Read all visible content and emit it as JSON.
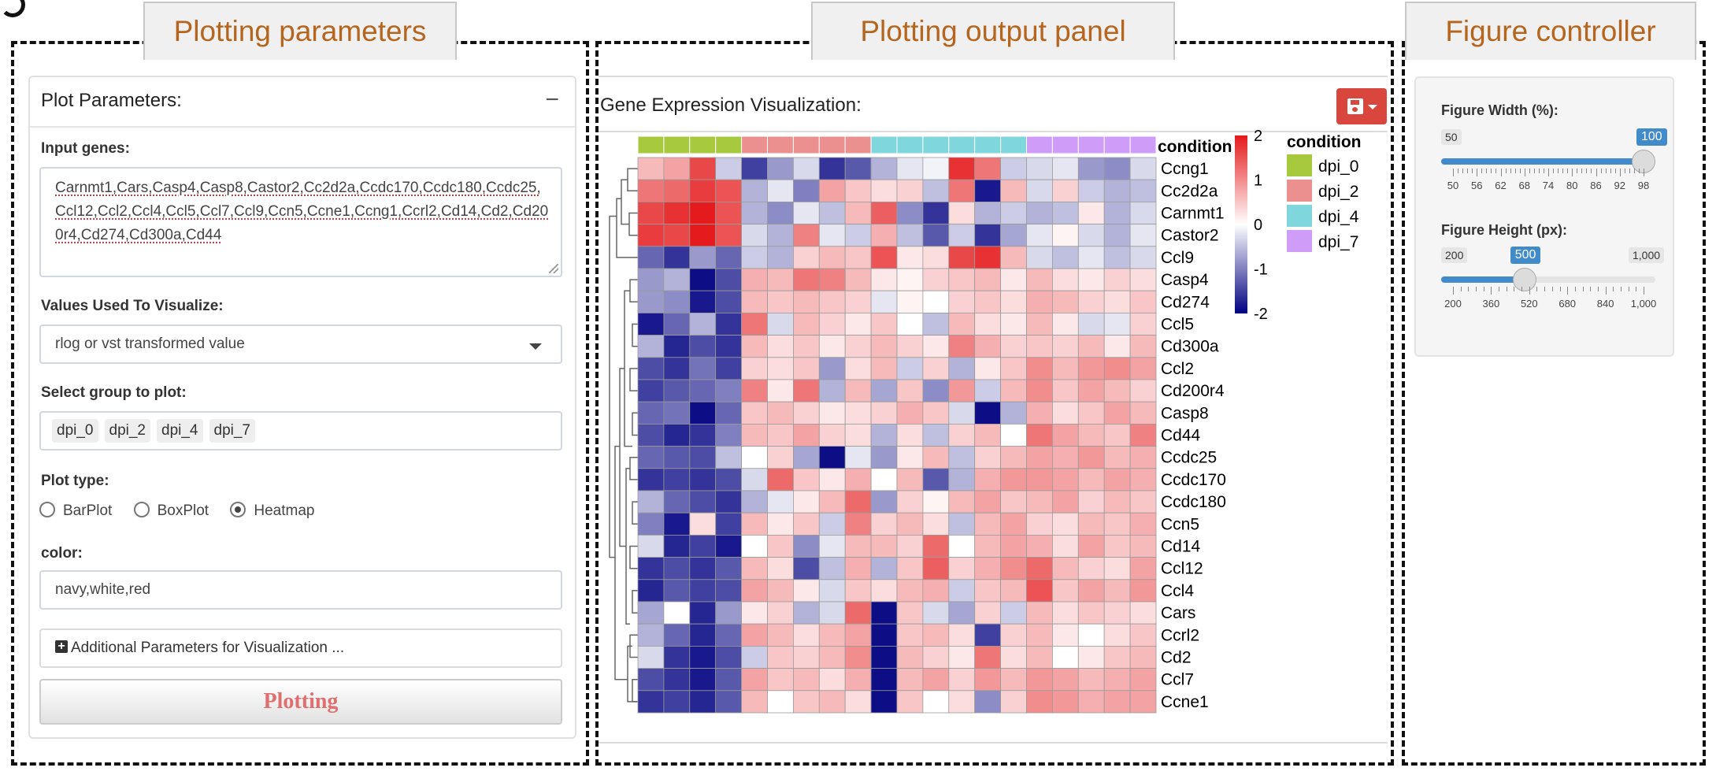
{
  "panel_labels": {
    "left": "Plotting parameters",
    "middle": "Plotting output panel",
    "right": "Figure controller"
  },
  "plot_params": {
    "title": "Plot Parameters:",
    "collapse_symbol": "−",
    "input_genes_label": "Input genes:",
    "input_genes_value": "Carnmt1,Cars,Casp4,Casp8,Castor2,Cc2d2a,Ccdc170,Ccdc180,Ccdc25,Ccl12,Ccl2,Ccl4,Ccl5,Ccl7,Ccl9,Ccn5,Ccne1,Ccng1,Ccrl2,Cd14,Cd2,Cd200r4,Cd274,Cd300a,Cd44",
    "values_label": "Values Used To Visualize:",
    "values_selected": "rlog or vst transformed value",
    "group_label": "Select group to plot:",
    "groups": [
      "dpi_0",
      "dpi_2",
      "dpi_4",
      "dpi_7"
    ],
    "plot_type_label": "Plot type:",
    "plot_types": [
      "BarPlot",
      "BoxPlot",
      "Heatmap"
    ],
    "plot_type_selected": "Heatmap",
    "color_label": "color:",
    "color_value": "navy,white,red",
    "additional_label": "Additional Parameters for Visualization ...",
    "plot_button": "Plotting"
  },
  "output": {
    "title": "Gene Expression Visualization:",
    "save_icon": "save-icon"
  },
  "chart_data": {
    "type": "heatmap",
    "rows": [
      "Ccng1",
      "Cc2d2a",
      "Carnmt1",
      "Castor2",
      "Ccl9",
      "Casp4",
      "Cd274",
      "Ccl5",
      "Cd300a",
      "Ccl2",
      "Cd200r4",
      "Casp8",
      "Cd44",
      "Ccdc25",
      "Ccdc170",
      "Ccdc180",
      "Ccn5",
      "Cd14",
      "Ccl12",
      "Ccl4",
      "Cars",
      "Ccrl2",
      "Cd2",
      "Ccl7",
      "Ccne1"
    ],
    "column_annotation_title": "condition",
    "conditions": [
      "dpi_0",
      "dpi_0",
      "dpi_0",
      "dpi_0",
      "dpi_2",
      "dpi_2",
      "dpi_2",
      "dpi_2",
      "dpi_2",
      "dpi_4",
      "dpi_4",
      "dpi_4",
      "dpi_4",
      "dpi_4",
      "dpi_4",
      "dpi_7",
      "dpi_7",
      "dpi_7",
      "dpi_7",
      "dpi_7"
    ],
    "values": [
      [
        0.6,
        0.8,
        1.6,
        -0.4,
        -1.5,
        -0.8,
        -0.3,
        -1.6,
        -1.3,
        -0.6,
        -0.2,
        -0.1,
        1.8,
        1.2,
        -0.4,
        -0.3,
        -0.2,
        -0.8,
        -0.9,
        -0.3
      ],
      [
        1.2,
        1.3,
        1.7,
        1.5,
        -0.6,
        -0.2,
        -1.0,
        0.8,
        0.5,
        0.3,
        0.4,
        -0.5,
        1.2,
        -1.8,
        0.6,
        -0.3,
        0.4,
        -0.4,
        -0.6,
        -0.5
      ],
      [
        1.6,
        1.8,
        2.0,
        1.5,
        -0.6,
        -0.9,
        -0.2,
        -0.5,
        0.6,
        1.4,
        -0.9,
        -1.6,
        0.3,
        -0.6,
        -0.4,
        -0.6,
        -0.5,
        0.2,
        -0.6,
        -0.3
      ],
      [
        1.7,
        1.6,
        2.0,
        1.5,
        -0.3,
        -0.6,
        1.1,
        -0.2,
        -0.4,
        0.7,
        -0.5,
        -1.3,
        -0.4,
        -1.6,
        -0.7,
        -0.2,
        0.1,
        -0.3,
        -0.6,
        -0.2
      ],
      [
        -1.2,
        -1.6,
        -0.8,
        -1.2,
        -0.4,
        -0.6,
        0.4,
        0.6,
        0.5,
        1.5,
        0.2,
        0.3,
        1.6,
        1.8,
        0.6,
        -0.3,
        -0.5,
        -0.2,
        -0.5,
        -0.3
      ],
      [
        -0.8,
        -0.6,
        -1.9,
        -1.4,
        0.7,
        0.6,
        1.2,
        1.1,
        0.6,
        0.2,
        0.1,
        0.4,
        0.5,
        0.6,
        0.2,
        0.6,
        0.3,
        0.2,
        0.4,
        0.3
      ],
      [
        -0.8,
        -0.9,
        -1.8,
        -1.4,
        0.6,
        0.5,
        0.6,
        0.5,
        0.4,
        -0.2,
        0.1,
        0.0,
        0.4,
        0.5,
        0.3,
        0.7,
        0.6,
        0.4,
        0.3,
        0.5
      ],
      [
        -1.8,
        -1.2,
        -0.6,
        -1.6,
        1.2,
        -0.3,
        0.6,
        0.4,
        0.2,
        0.5,
        0.0,
        -0.5,
        0.6,
        0.3,
        0.2,
        0.6,
        0.2,
        -0.3,
        -0.2,
        0.4
      ],
      [
        -0.6,
        -1.7,
        -1.4,
        -1.6,
        0.6,
        0.3,
        0.5,
        0.2,
        0.4,
        0.6,
        0.4,
        0.2,
        1.1,
        0.7,
        0.4,
        0.5,
        0.4,
        0.6,
        0.2,
        0.6
      ],
      [
        -1.4,
        -1.6,
        -1.1,
        -1.5,
        0.4,
        0.3,
        0.5,
        -0.8,
        0.3,
        0.6,
        -0.4,
        0.4,
        -0.6,
        0.2,
        0.5,
        1.0,
        0.6,
        0.9,
        1.0,
        0.8
      ],
      [
        -1.5,
        -1.3,
        -1.2,
        -1.0,
        1.1,
        0.2,
        1.2,
        -0.6,
        0.6,
        -0.7,
        0.5,
        -0.9,
        0.9,
        -0.4,
        0.6,
        1.0,
        0.5,
        0.8,
        0.6,
        0.4
      ],
      [
        -1.2,
        -1.1,
        -1.9,
        -1.2,
        0.5,
        0.6,
        0.4,
        0.2,
        0.3,
        0.4,
        0.7,
        0.5,
        -0.3,
        -1.9,
        -0.6,
        0.7,
        0.3,
        0.5,
        0.8,
        0.6
      ],
      [
        -1.4,
        -1.7,
        -1.6,
        -1.0,
        0.6,
        0.5,
        0.8,
        0.4,
        0.3,
        -0.6,
        0.3,
        -0.5,
        0.4,
        0.6,
        0.0,
        1.2,
        0.8,
        0.6,
        0.5,
        1.1
      ],
      [
        -1.2,
        -1.3,
        -1.4,
        -0.5,
        0.0,
        0.4,
        -0.7,
        -1.9,
        -0.2,
        -0.8,
        0.2,
        0.6,
        -0.5,
        0.4,
        0.6,
        0.8,
        0.7,
        0.9,
        0.6,
        0.7
      ],
      [
        -1.6,
        -1.5,
        -1.6,
        -1.4,
        -0.3,
        1.3,
        0.5,
        0.2,
        0.7,
        0.0,
        0.6,
        -1.3,
        -0.6,
        0.7,
        0.9,
        0.9,
        0.8,
        0.6,
        0.8,
        0.7
      ],
      [
        -0.6,
        -1.2,
        -1.4,
        -1.6,
        -0.6,
        -0.2,
        0.2,
        0.6,
        1.3,
        -0.8,
        0.4,
        0.1,
        0.6,
        0.8,
        0.5,
        0.6,
        0.8,
        0.4,
        0.6,
        0.5
      ],
      [
        -1.0,
        -1.8,
        0.3,
        -1.5,
        0.6,
        0.2,
        0.5,
        -0.4,
        1.1,
        0.4,
        0.6,
        0.3,
        -0.5,
        0.6,
        0.8,
        0.4,
        0.3,
        0.6,
        0.5,
        0.7
      ],
      [
        -0.3,
        -1.7,
        -1.5,
        -1.8,
        0.0,
        0.5,
        -0.9,
        -0.2,
        0.6,
        0.6,
        0.4,
        1.3,
        0.0,
        0.6,
        0.8,
        0.7,
        0.3,
        0.8,
        0.5,
        0.6
      ],
      [
        -1.6,
        -1.4,
        -1.6,
        -1.3,
        0.6,
        0.3,
        -1.4,
        -0.5,
        0.7,
        -0.6,
        0.5,
        1.4,
        0.4,
        0.7,
        1.0,
        1.3,
        0.6,
        0.4,
        0.3,
        0.8
      ],
      [
        -1.7,
        -1.3,
        -1.5,
        -1.4,
        0.8,
        0.6,
        0.2,
        -0.3,
        0.5,
        0.3,
        0.6,
        0.7,
        -0.4,
        0.5,
        0.6,
        1.5,
        0.5,
        0.8,
        0.6,
        0.9
      ],
      [
        -0.7,
        0.0,
        -1.7,
        -0.8,
        0.2,
        0.4,
        -0.6,
        -0.3,
        1.3,
        -1.9,
        0.5,
        -0.3,
        -0.7,
        0.4,
        -0.4,
        0.6,
        0.3,
        0.5,
        0.4,
        0.3
      ],
      [
        -0.6,
        -1.2,
        -1.7,
        -1.2,
        0.8,
        0.6,
        0.3,
        0.6,
        0.8,
        -1.9,
        0.5,
        0.6,
        0.3,
        -1.5,
        0.4,
        0.6,
        0.2,
        0.0,
        0.3,
        0.5
      ],
      [
        -0.3,
        -1.6,
        -1.8,
        -1.4,
        -0.4,
        0.5,
        0.4,
        0.6,
        1.0,
        -1.9,
        0.6,
        0.4,
        0.2,
        1.2,
        0.3,
        0.6,
        0.0,
        0.2,
        0.5,
        0.6
      ],
      [
        -1.4,
        -1.6,
        -1.8,
        -1.3,
        0.8,
        0.5,
        0.6,
        0.3,
        0.7,
        -1.9,
        0.6,
        0.8,
        0.4,
        0.9,
        0.6,
        0.9,
        0.8,
        0.6,
        0.7,
        0.8
      ],
      [
        -1.6,
        -1.5,
        -1.7,
        -1.3,
        0.6,
        0.0,
        0.5,
        0.6,
        0.3,
        -1.9,
        0.5,
        0.0,
        0.3,
        -0.9,
        0.4,
        1.0,
        0.9,
        0.7,
        0.8,
        0.8
      ]
    ],
    "scale_ticks": [
      2,
      1,
      0,
      -1,
      -2
    ],
    "vmin": -2,
    "vmax": 2,
    "colors": {
      "low": "#000080",
      "mid": "#ffffff",
      "high": "#e41a1c"
    },
    "legend_title": "condition",
    "legend": [
      {
        "name": "dpi_0",
        "color": "#a6c93e"
      },
      {
        "name": "dpi_2",
        "color": "#ec8f8f"
      },
      {
        "name": "dpi_4",
        "color": "#7fd6dc"
      },
      {
        "name": "dpi_7",
        "color": "#cf9df7"
      }
    ]
  },
  "controller": {
    "width": {
      "label": "Figure Width (%):",
      "min": 50,
      "max": 100,
      "value": 100,
      "tick_labels": [
        "50",
        "56",
        "62",
        "68",
        "74",
        "80",
        "86",
        "92",
        "98"
      ]
    },
    "height": {
      "label": "Figure Height (px):",
      "min_label": "200",
      "max_label": "1,000",
      "min": 200,
      "max": 1000,
      "value": 500,
      "tick_labels": [
        "200",
        "360",
        "520",
        "680",
        "840",
        "1,000"
      ]
    }
  }
}
